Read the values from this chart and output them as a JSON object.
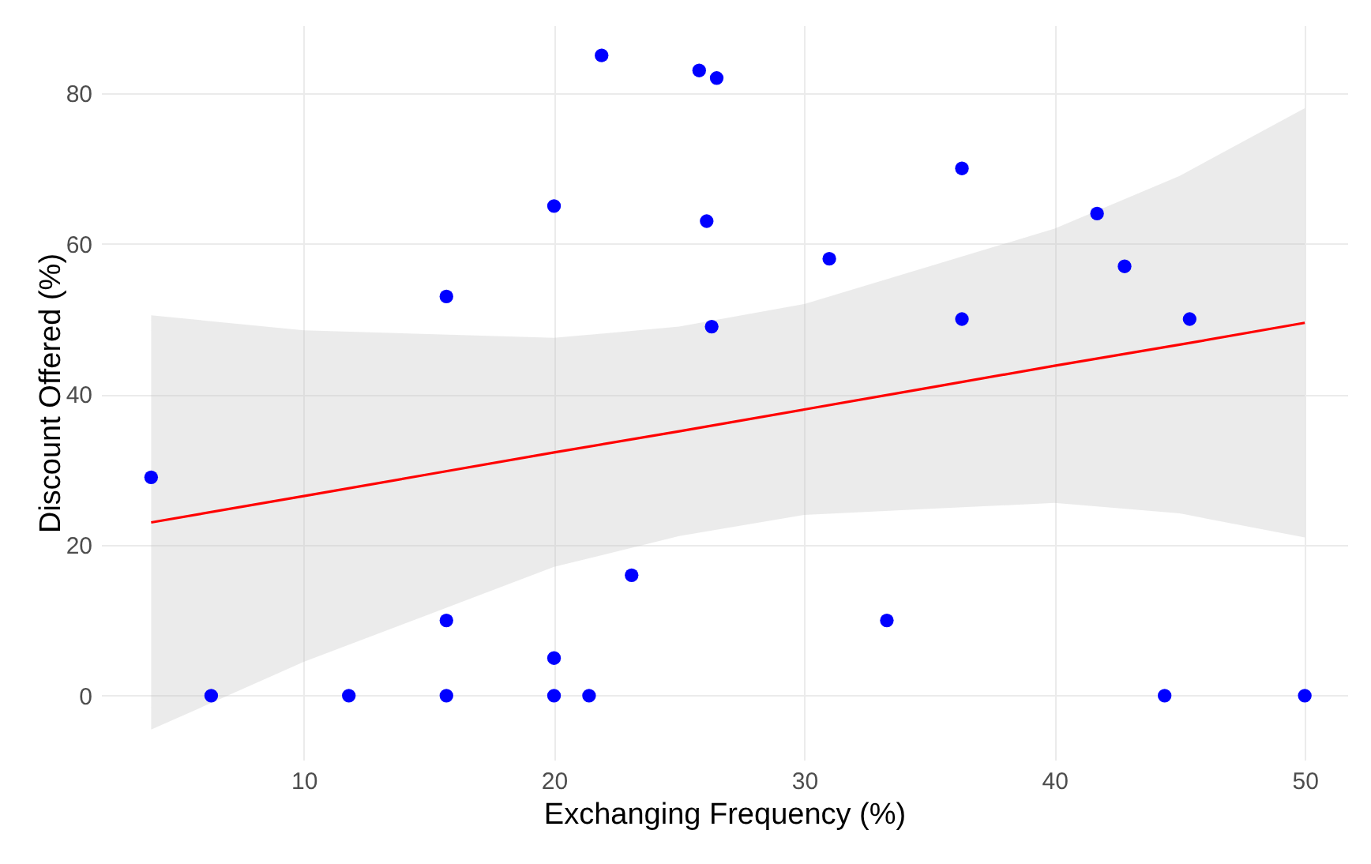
{
  "chart_data": {
    "type": "scatter",
    "xlabel": "Exchanging Frequency (%)",
    "ylabel": "Discount Offered (%)",
    "xlim": [
      1.9,
      51.7
    ],
    "ylim": [
      -8.5,
      89
    ],
    "xticks": [
      10,
      20,
      30,
      40,
      50
    ],
    "yticks": [
      0,
      20,
      40,
      60,
      80
    ],
    "grid": true,
    "series": [
      {
        "marker": "circle",
        "color": "#0000ff",
        "x": [
          3.9,
          6.3,
          11.8,
          15.7,
          15.7,
          15.7,
          20,
          20,
          20,
          21.4,
          21.9,
          23.1,
          25.8,
          26.5,
          26.1,
          26.3,
          31,
          33.3,
          36.3,
          36.3,
          41.7,
          42.8,
          44.4,
          45.4,
          50
        ],
        "values": [
          29,
          0,
          0,
          0,
          10,
          53,
          65,
          5,
          0,
          0,
          85,
          16,
          83,
          82,
          63,
          49,
          58,
          10,
          70,
          50,
          64,
          57,
          0,
          50,
          0
        ]
      },
      {
        "type": "line",
        "color": "#ff0000",
        "x": [
          3.9,
          10,
          15,
          20,
          25,
          30,
          35,
          40,
          45,
          50
        ],
        "values": [
          23,
          26.5,
          29.4,
          32.3,
          35.1,
          38,
          40.9,
          43.8,
          46.6,
          49.5
        ],
        "lower": [
          -4.5,
          4.5,
          10.8,
          17.1,
          21.2,
          24,
          24.8,
          25.6,
          24.2,
          21
        ],
        "upper": [
          50.5,
          48.5,
          48,
          47.5,
          49,
          52,
          57,
          62,
          69,
          78
        ]
      }
    ]
  }
}
